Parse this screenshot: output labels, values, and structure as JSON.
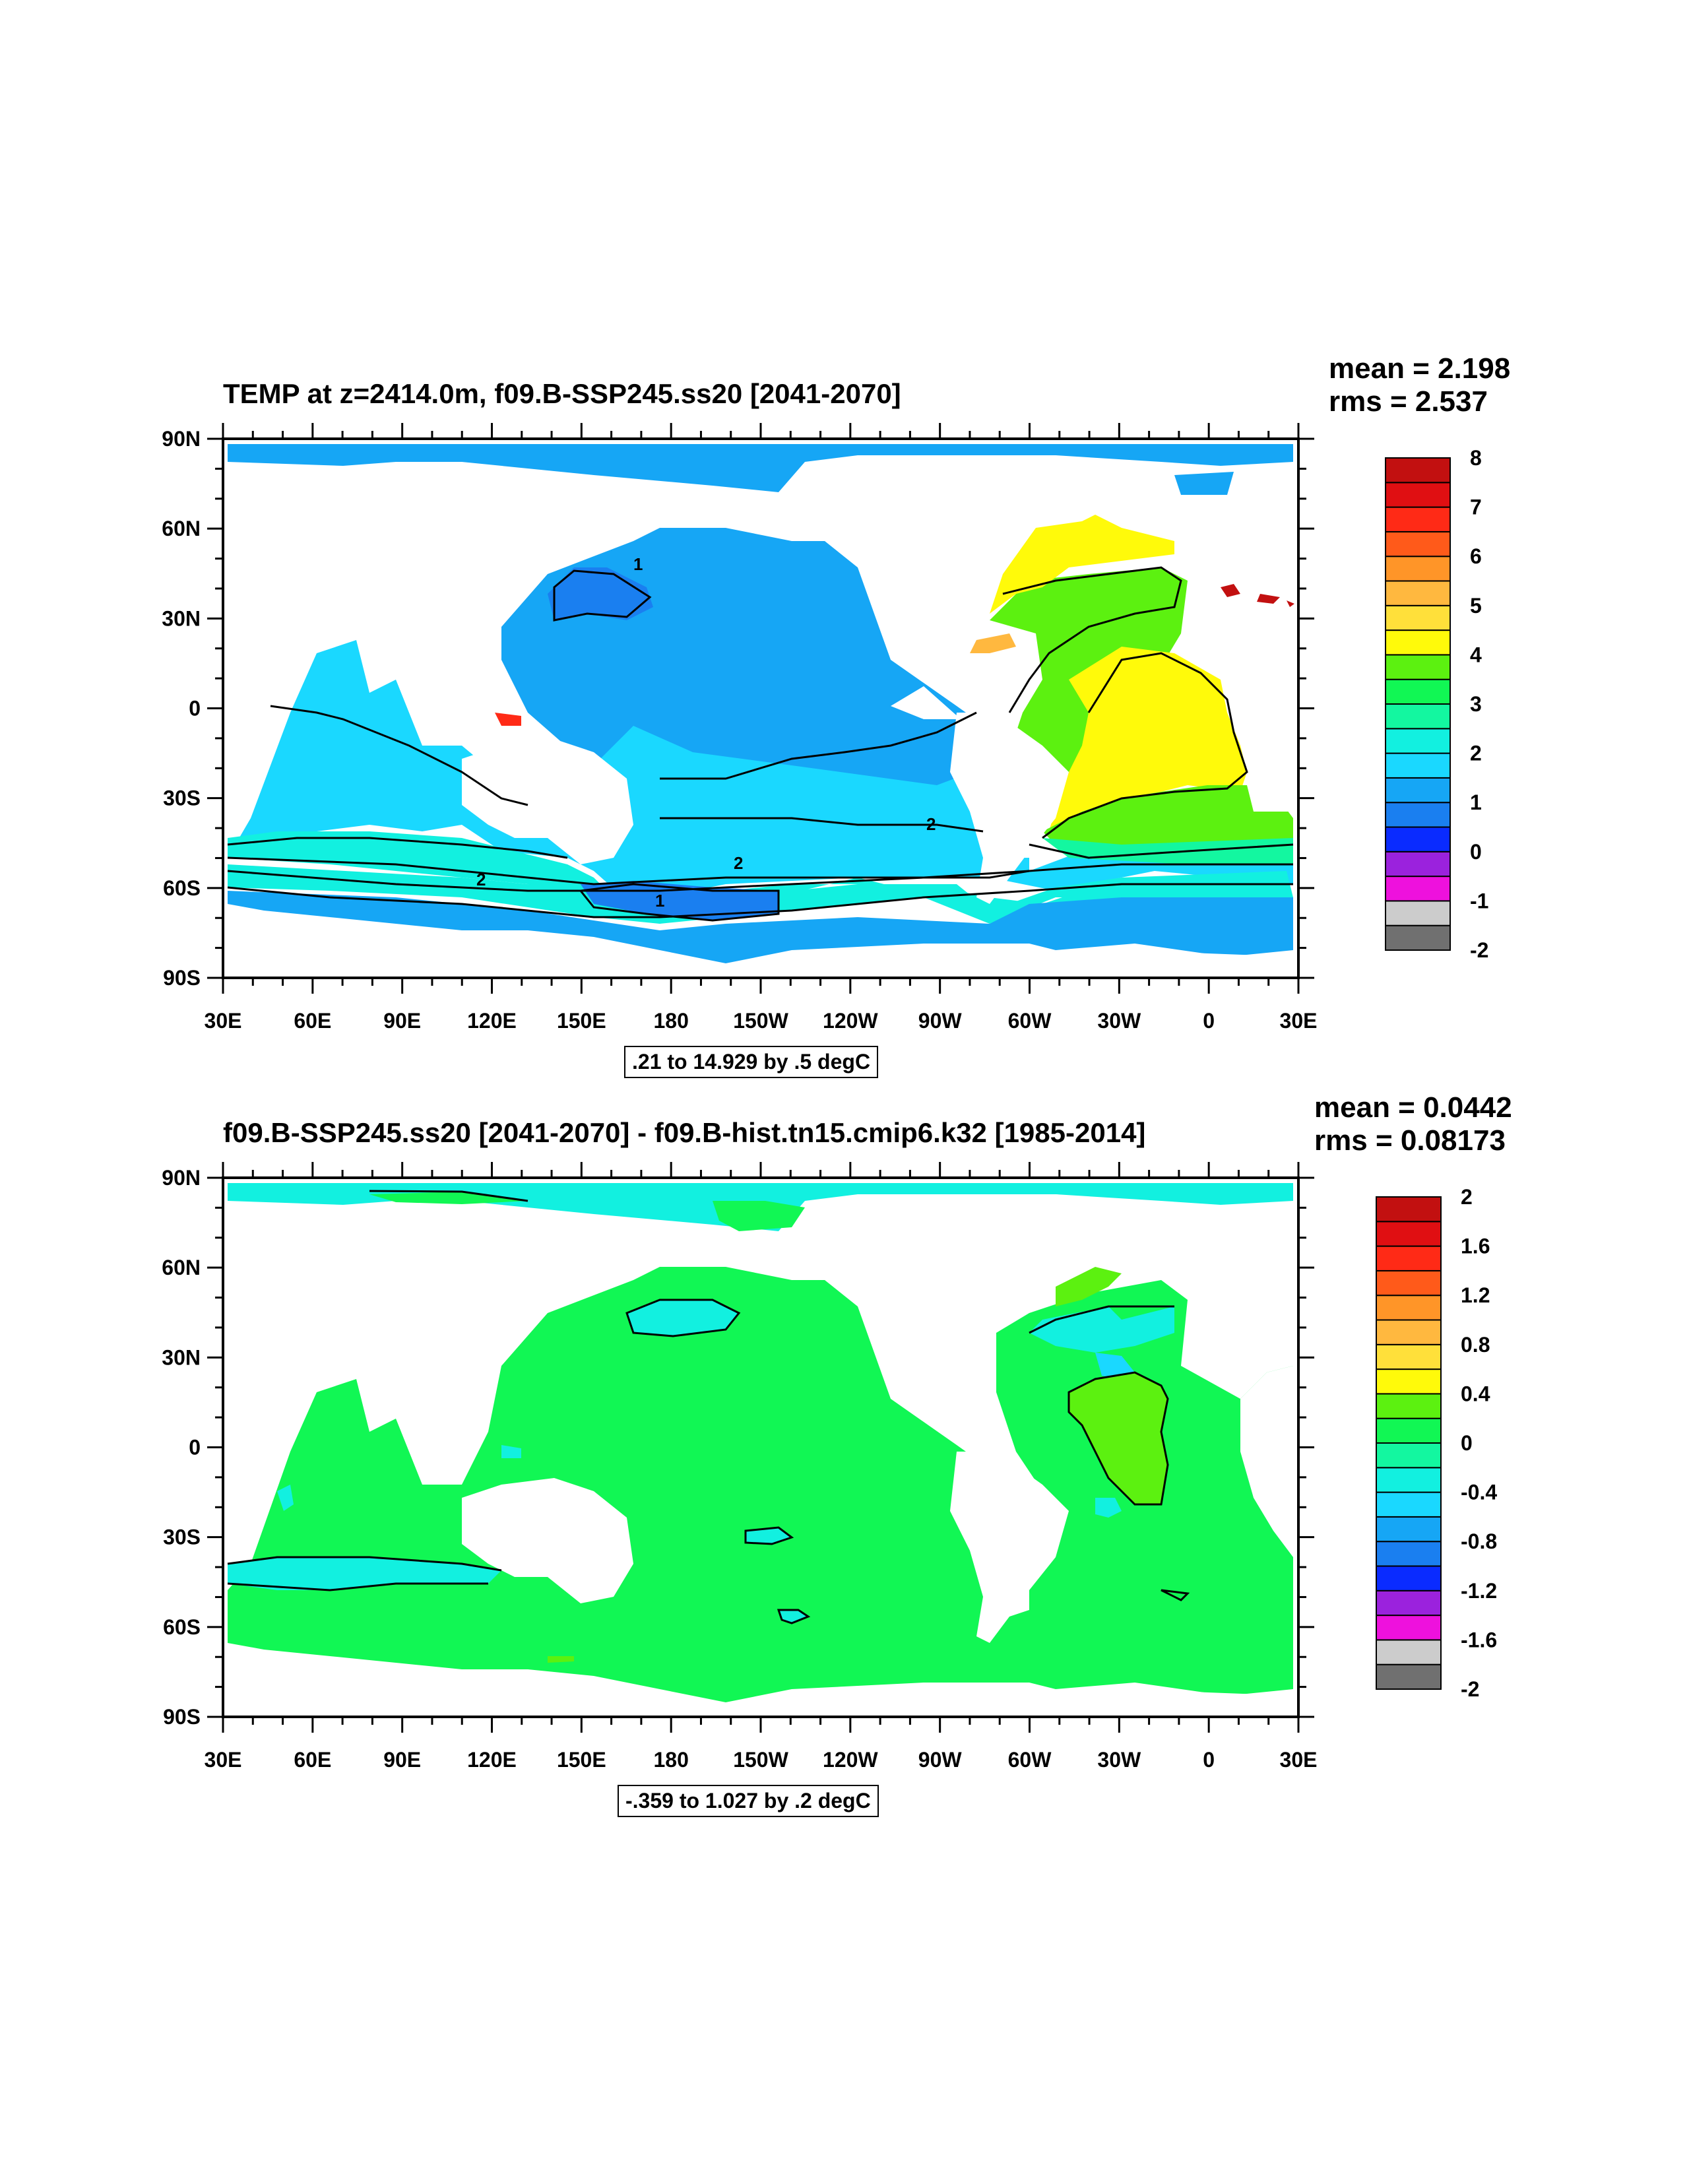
{
  "colors": {
    "land": "#ffffff",
    "scale": [
      "#707070",
      "#cccccc",
      "#ee11dd",
      "#9b22dd",
      "#0a2bff",
      "#1a7ff0",
      "#16a6f5",
      "#1ad8ff",
      "#12f0e0",
      "#13f7a0",
      "#11f754",
      "#5cf110",
      "#fffa0a",
      "#ffe03a",
      "#ffb83f",
      "#ff9528",
      "#ff5a1a",
      "#ff2a16",
      "#e00f12",
      "#c21010"
    ]
  },
  "axes": {
    "lon_labels": [
      "30E",
      "60E",
      "90E",
      "120E",
      "150E",
      "180",
      "150W",
      "120W",
      "90W",
      "60W",
      "30W",
      "0",
      "30E"
    ],
    "lat_labels": [
      "90N",
      "60N",
      "30N",
      "0",
      "30S",
      "60S",
      "90S"
    ]
  },
  "panels": [
    {
      "title": "TEMP at z=2414.0m, f09.B-SSP245.ss20 [2041-2070]",
      "mean": "mean = 2.198",
      "rms": "rms = 2.537",
      "range": ".21 to 14.929 by .5 degC",
      "colorbar_labels": [
        "8",
        "7",
        "6",
        "5",
        "4",
        "3",
        "2",
        "1",
        "0",
        "-1",
        "-2"
      ],
      "contour_labels": [
        "1",
        "2",
        "2",
        "2",
        "1"
      ]
    },
    {
      "title": "f09.B-SSP245.ss20 [2041-2070] - f09.B-hist.tn15.cmip6.k32 [1985-2014]",
      "mean": "mean = 0.0442",
      "rms": "rms = 0.08173",
      "range": "-.359 to 1.027 by .2 degC",
      "colorbar_labels": [
        "2",
        "1.6",
        "1.2",
        "0.8",
        "0.4",
        "0",
        "-0.4",
        "-0.8",
        "-1.2",
        "-1.6",
        "-2"
      ],
      "contour_labels": []
    }
  ]
}
